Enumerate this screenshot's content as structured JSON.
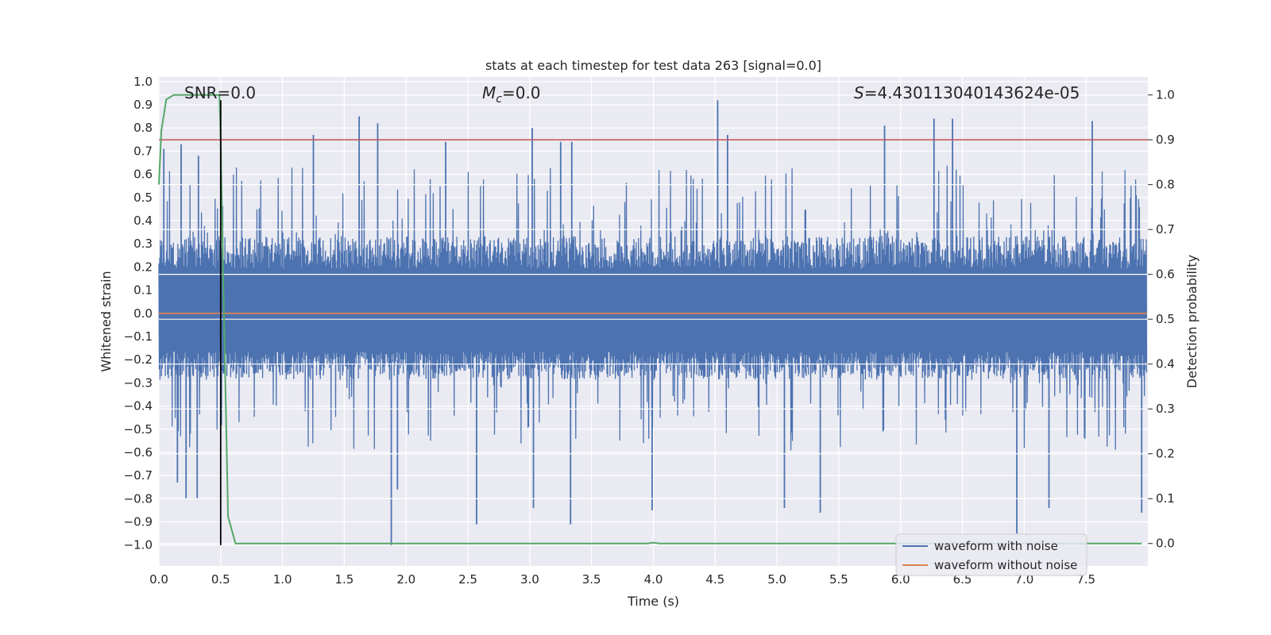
{
  "chart_data": {
    "type": "line",
    "title": "stats at each timestep for test data 263 [signal=0.0]",
    "xlabel": "Time (s)",
    "ylabel": "Whitened strain",
    "y2label": "Detection probability",
    "xlim": [
      0.0,
      8.0
    ],
    "ylim": [
      -1.09,
      1.02
    ],
    "y2lim": [
      -0.05,
      1.04
    ],
    "x_ticks": [
      0.0,
      0.5,
      1.0,
      1.5,
      2.0,
      2.5,
      3.0,
      3.5,
      4.0,
      4.5,
      5.0,
      5.5,
      6.0,
      6.5,
      7.0,
      7.5
    ],
    "x_tick_labels": [
      "0.0",
      "0.5",
      "1.0",
      "1.5",
      "2.0",
      "2.5",
      "3.0",
      "3.5",
      "4.0",
      "4.5",
      "5.0",
      "5.5",
      "6.0",
      "6.5",
      "7.0",
      "7.5"
    ],
    "y_ticks": [
      1.0,
      0.9,
      0.8,
      0.7,
      0.6,
      0.5,
      0.4,
      0.3,
      0.2,
      0.1,
      0.0,
      -0.1,
      -0.2,
      -0.3,
      -0.4,
      -0.5,
      -0.6,
      -0.7,
      -0.8,
      -0.9,
      -1.0
    ],
    "y_tick_labels": [
      "1.0",
      "0.9",
      "0.8",
      "0.7",
      "0.6",
      "0.5",
      "0.4",
      "0.3",
      "0.2",
      "0.1",
      "0.0",
      "−0.1",
      "−0.2",
      "−0.3",
      "−0.4",
      "−0.5",
      "−0.6",
      "−0.7",
      "−0.8",
      "−0.9",
      "−1.0"
    ],
    "y2_ticks": [
      1.0,
      0.9,
      0.8,
      0.7,
      0.6,
      0.5,
      0.4,
      0.3,
      0.2,
      0.1,
      0.0
    ],
    "y2_tick_labels": [
      "1.0",
      "0.9",
      "0.8",
      "0.7",
      "0.6",
      "0.5",
      "0.4",
      "0.3",
      "0.2",
      "0.1",
      "0.0"
    ],
    "annotations": {
      "snr": "SNR=0.0",
      "mc_symbol": "M",
      "mc_sub": "c",
      "mc_value": "=0.0",
      "s_symbol": "S",
      "s_value": "=4.430113040143624e-05"
    },
    "threshold": {
      "axis": "right",
      "value": 0.9,
      "color": "#c44e52"
    },
    "marker_line": {
      "x": 0.5,
      "y_range": [
        -1.0,
        0.92
      ],
      "color": "#000000"
    },
    "series": [
      {
        "name": "waveform with noise",
        "color": "#4c72b0",
        "axis": "left",
        "kind": "noise",
        "envelope_upper": 0.35,
        "envelope_lower": -0.3,
        "peaks": [
          {
            "x": 0.04,
            "y": 0.71
          },
          {
            "x": 0.18,
            "y": 0.73
          },
          {
            "x": 0.32,
            "y": 0.68
          },
          {
            "x": 1.25,
            "y": 0.77
          },
          {
            "x": 1.62,
            "y": 0.85
          },
          {
            "x": 1.77,
            "y": 0.82
          },
          {
            "x": 2.32,
            "y": 0.74
          },
          {
            "x": 3.02,
            "y": 0.8
          },
          {
            "x": 3.25,
            "y": 0.74
          },
          {
            "x": 3.34,
            "y": 0.74
          },
          {
            "x": 4.52,
            "y": 0.92
          },
          {
            "x": 4.6,
            "y": 0.77
          },
          {
            "x": 5.87,
            "y": 0.81
          },
          {
            "x": 6.27,
            "y": 0.84
          },
          {
            "x": 6.42,
            "y": 0.84
          },
          {
            "x": 7.55,
            "y": 0.83
          }
        ],
        "troughs": [
          {
            "x": 0.15,
            "y": -0.73
          },
          {
            "x": 0.22,
            "y": -0.8
          },
          {
            "x": 0.31,
            "y": -0.8
          },
          {
            "x": 1.88,
            "y": -1.0
          },
          {
            "x": 1.93,
            "y": -0.76
          },
          {
            "x": 2.57,
            "y": -0.91
          },
          {
            "x": 3.03,
            "y": -0.84
          },
          {
            "x": 3.33,
            "y": -0.91
          },
          {
            "x": 3.99,
            "y": -0.85
          },
          {
            "x": 5.06,
            "y": -0.84
          },
          {
            "x": 5.35,
            "y": -0.86
          },
          {
            "x": 6.94,
            "y": -0.95
          },
          {
            "x": 7.2,
            "y": -0.84
          },
          {
            "x": 7.95,
            "y": -0.86
          }
        ]
      },
      {
        "name": "waveform without noise",
        "color": "#dd8452",
        "axis": "left",
        "kind": "line",
        "x": [
          0.0,
          8.0
        ],
        "y": [
          0.0,
          0.0
        ]
      },
      {
        "name": "detection probability",
        "color": "#55a868",
        "axis": "right",
        "kind": "line",
        "x": [
          0.0,
          0.02,
          0.06,
          0.12,
          0.3,
          0.49,
          0.5,
          0.52,
          0.56,
          0.62,
          3.95,
          4.0,
          4.05,
          7.95
        ],
        "y": [
          0.8,
          0.92,
          0.99,
          1.0,
          1.0,
          1.0,
          0.9,
          0.6,
          0.06,
          0.0,
          0.0,
          0.002,
          0.0,
          0.0
        ]
      }
    ],
    "legend": {
      "placement": "lower-right",
      "entries": [
        {
          "label": "waveform with noise",
          "color": "#4c72b0"
        },
        {
          "label": "waveform without noise",
          "color": "#dd8452"
        }
      ]
    },
    "colors": {
      "background": "#eaeaf2",
      "grid": "#ffffff",
      "text": "#262626"
    }
  }
}
